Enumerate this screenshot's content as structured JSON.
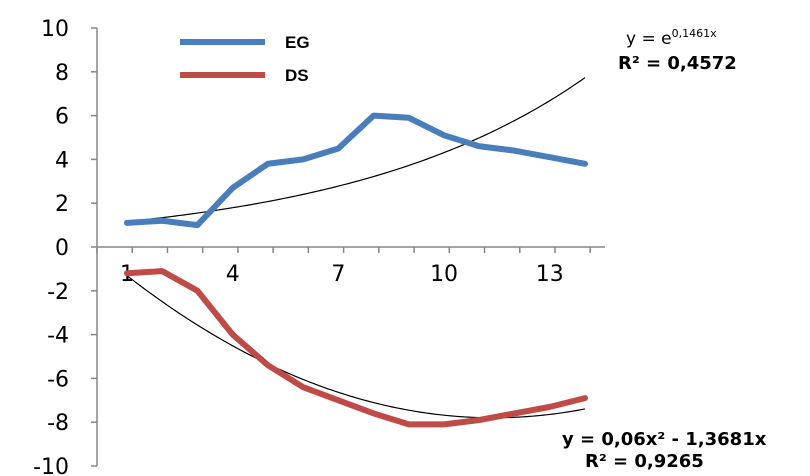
{
  "chart_data": {
    "type": "line",
    "title": "",
    "xlabel": "",
    "ylabel": "",
    "ylim": [
      -10,
      10
    ],
    "xlim": [
      1,
      14
    ],
    "y_ticks": [
      "10",
      "8",
      "6",
      "4",
      "2",
      "0",
      "-2",
      "-4",
      "-6",
      "-8",
      "-10"
    ],
    "x_tick_labels": [
      "1",
      "4",
      "7",
      "10",
      "13"
    ],
    "x_tick_values": [
      1,
      4,
      7,
      10,
      13
    ],
    "x": [
      1,
      2,
      3,
      4,
      5,
      6,
      7,
      8,
      9,
      10,
      11,
      12,
      13,
      14
    ],
    "series": [
      {
        "name": "EG",
        "color": "#4a7ebb",
        "values": [
          1.1,
          1.2,
          1.0,
          2.7,
          3.8,
          4.0,
          4.5,
          6.0,
          5.9,
          5.1,
          4.6,
          4.4,
          4.1,
          3.8
        ]
      },
      {
        "name": "DS",
        "color": "#be4b48",
        "values": [
          -1.2,
          -1.1,
          -2.0,
          -4.0,
          -5.4,
          -6.4,
          -7.0,
          -7.6,
          -8.1,
          -8.1,
          -7.9,
          -7.6,
          -7.3,
          -6.9
        ]
      }
    ],
    "trendlines": [
      {
        "of": "EG",
        "kind": "exponential",
        "coef": 0.1461,
        "equation_prefix": "y = e",
        "equation_exponent": "0,1461x",
        "r2_label": "R² = 0,4572"
      },
      {
        "of": "DS",
        "kind": "polynomial",
        "a": 0.06,
        "b": -1.3681,
        "c": 0,
        "equation": "y = 0,06x² - 1,3681x",
        "r2_label": "R² = 0,9265"
      }
    ],
    "legend_position": "top-left",
    "grid": false
  }
}
